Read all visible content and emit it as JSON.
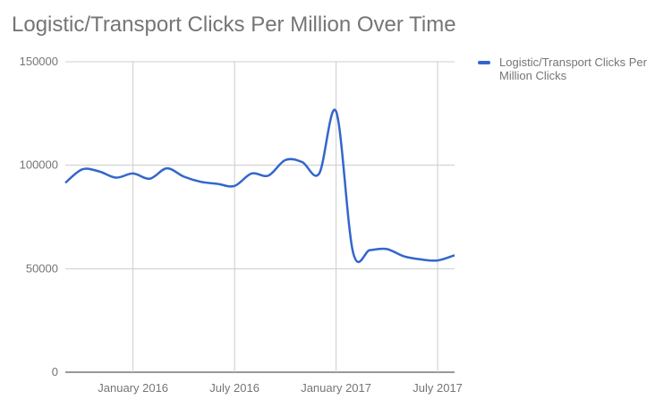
{
  "chart_data": {
    "type": "line",
    "title": "Logistic/Transport Clicks Per Million Over Time",
    "xlabel": "",
    "ylabel": "",
    "ylim": [
      0,
      150000
    ],
    "y_ticks": [
      "0",
      "50000",
      "100000",
      "150000"
    ],
    "x_ticks": [
      "January 2016",
      "July 2016",
      "January 2017",
      "July 2017"
    ],
    "x_tick_months": [
      "2016-01",
      "2016-07",
      "2017-01",
      "2017-07"
    ],
    "xlim": [
      "2015-09",
      "2017-08"
    ],
    "grid": true,
    "legend_position": "right",
    "series": [
      {
        "name": "Logistic/Transport Clicks Per Million Clicks",
        "color": "#3366cc",
        "x": [
          "2015-09",
          "2015-10",
          "2015-11",
          "2015-12",
          "2016-01",
          "2016-02",
          "2016-03",
          "2016-04",
          "2016-05",
          "2016-06",
          "2016-07",
          "2016-08",
          "2016-09",
          "2016-10",
          "2016-11",
          "2016-12",
          "2017-01",
          "2017-02",
          "2017-03",
          "2017-04",
          "2017-05",
          "2017-06",
          "2017-07",
          "2017-08"
        ],
        "values": [
          91500,
          98000,
          97000,
          94000,
          96000,
          93500,
          98500,
          94500,
          92000,
          91000,
          90000,
          96000,
          95000,
          102500,
          101500,
          96000,
          126000,
          58000,
          59000,
          59500,
          56000,
          54500,
          54000,
          56500
        ]
      }
    ]
  }
}
